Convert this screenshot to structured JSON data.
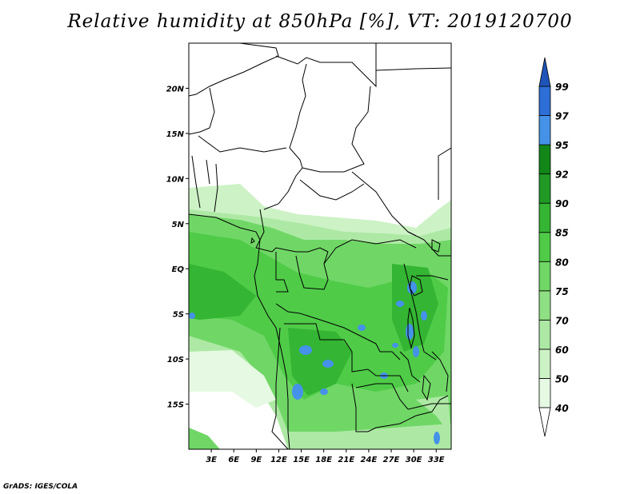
{
  "title": "Relative humidity at 850hPa [%], VT: 2019120700",
  "credit": "GrADS: IGES/COLA",
  "map": {
    "lat_ticks": [
      {
        "value": 20,
        "label": "20N"
      },
      {
        "value": 15,
        "label": "15N"
      },
      {
        "value": 10,
        "label": "10N"
      },
      {
        "value": 5,
        "label": "5N"
      },
      {
        "value": 0,
        "label": "EQ"
      },
      {
        "value": -5,
        "label": "5S"
      },
      {
        "value": -10,
        "label": "10S"
      },
      {
        "value": -15,
        "label": "15S"
      }
    ],
    "lon_ticks": [
      {
        "value": 3,
        "label": "3E"
      },
      {
        "value": 6,
        "label": "6E"
      },
      {
        "value": 9,
        "label": "9E"
      },
      {
        "value": 12,
        "label": "12E"
      },
      {
        "value": 15,
        "label": "15E"
      },
      {
        "value": 18,
        "label": "18E"
      },
      {
        "value": 21,
        "label": "21E"
      },
      {
        "value": 24,
        "label": "24E"
      },
      {
        "value": 27,
        "label": "27E"
      },
      {
        "value": 30,
        "label": "30E"
      },
      {
        "value": 33,
        "label": "33E"
      }
    ],
    "lon_range": [
      0,
      35
    ],
    "lat_range": [
      -20,
      25
    ]
  },
  "colorbar": {
    "levels": [
      {
        "label": "40",
        "color": "#ffffff"
      },
      {
        "label": "50",
        "color": "#e6f9e2"
      },
      {
        "label": "60",
        "color": "#cdf2c6"
      },
      {
        "label": "70",
        "color": "#ade9a4"
      },
      {
        "label": "75",
        "color": "#8fe084"
      },
      {
        "label": "80",
        "color": "#70d766"
      },
      {
        "label": "85",
        "color": "#4fcb48"
      },
      {
        "label": "90",
        "color": "#34b533"
      },
      {
        "label": "92",
        "color": "#219a25"
      },
      {
        "label": "95",
        "color": "#138619"
      },
      {
        "label": "97",
        "color": "#4592e8"
      },
      {
        "label": "99",
        "color": "#2d6fd6"
      }
    ],
    "top_color": "#1f55b8",
    "bottom_color": "#ffffff"
  }
}
